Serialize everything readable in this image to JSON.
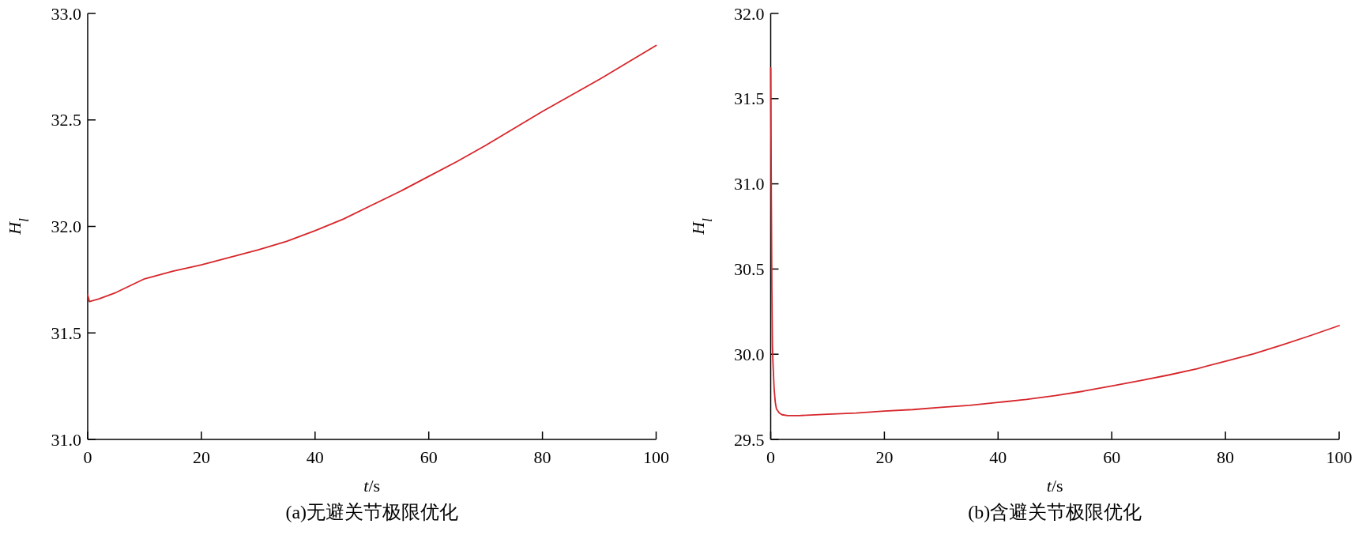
{
  "chart_data": [
    {
      "type": "line",
      "title": "(a)无避关节极限优化",
      "xlabel": "t/s",
      "ylabel": "H$_{l}$",
      "x": [
        0,
        0.3,
        2,
        5,
        10,
        15,
        20,
        25,
        30,
        35,
        40,
        45,
        50,
        55,
        60,
        65,
        70,
        75,
        80,
        85,
        90,
        95,
        100
      ],
      "series": [
        {
          "color": "#d7262b",
          "values": [
            31.68,
            31.647,
            31.66,
            31.69,
            31.754,
            31.79,
            31.82,
            31.855,
            31.89,
            31.93,
            31.98,
            32.035,
            32.1,
            32.165,
            32.235,
            32.305,
            32.38,
            32.46,
            32.54,
            32.615,
            32.69,
            32.77,
            32.85
          ]
        }
      ],
      "xlim": [
        0,
        100
      ],
      "ylim": [
        31.0,
        33.0
      ],
      "xticks": [
        0,
        20,
        40,
        60,
        80,
        100
      ],
      "yticks": [
        {
          "value": 31,
          "label": "31.0"
        },
        31.5,
        {
          "value": 32,
          "label": "32.0"
        },
        32.5,
        {
          "value": 33,
          "label": "33.0"
        }
      ]
    },
    {
      "type": "line",
      "title": "(b)含避关节极限优化",
      "xlabel": "t/s",
      "ylabel": "H$_{l}$",
      "x": [
        0,
        0.1,
        0.2,
        0.3,
        0.4,
        0.6,
        0.8,
        1,
        1.5,
        2,
        3,
        5,
        10,
        15,
        20,
        25,
        30,
        35,
        40,
        45,
        50,
        55,
        60,
        65,
        70,
        75,
        80,
        85,
        90,
        95,
        100
      ],
      "series": [
        {
          "color": "#d7262b",
          "values": [
            31.68,
            31.0,
            30.4,
            30.05,
            29.95,
            29.8,
            29.72,
            29.68,
            29.655,
            29.645,
            29.64,
            29.64,
            29.648,
            29.655,
            29.666,
            29.675,
            29.688,
            29.7,
            29.717,
            29.735,
            29.757,
            29.783,
            29.814,
            29.845,
            29.878,
            29.915,
            29.959,
            30.003,
            30.055,
            30.11,
            30.168
          ]
        }
      ],
      "xlim": [
        0,
        100
      ],
      "ylim": [
        29.5,
        32.0
      ],
      "xticks": [
        0,
        20,
        40,
        60,
        80,
        100
      ],
      "yticks": [
        29.5,
        {
          "value": 30,
          "label": "30.0"
        },
        30.5,
        {
          "value": 31,
          "label": "31.0"
        },
        31.5,
        {
          "value": 32,
          "label": "32.0"
        }
      ]
    }
  ]
}
